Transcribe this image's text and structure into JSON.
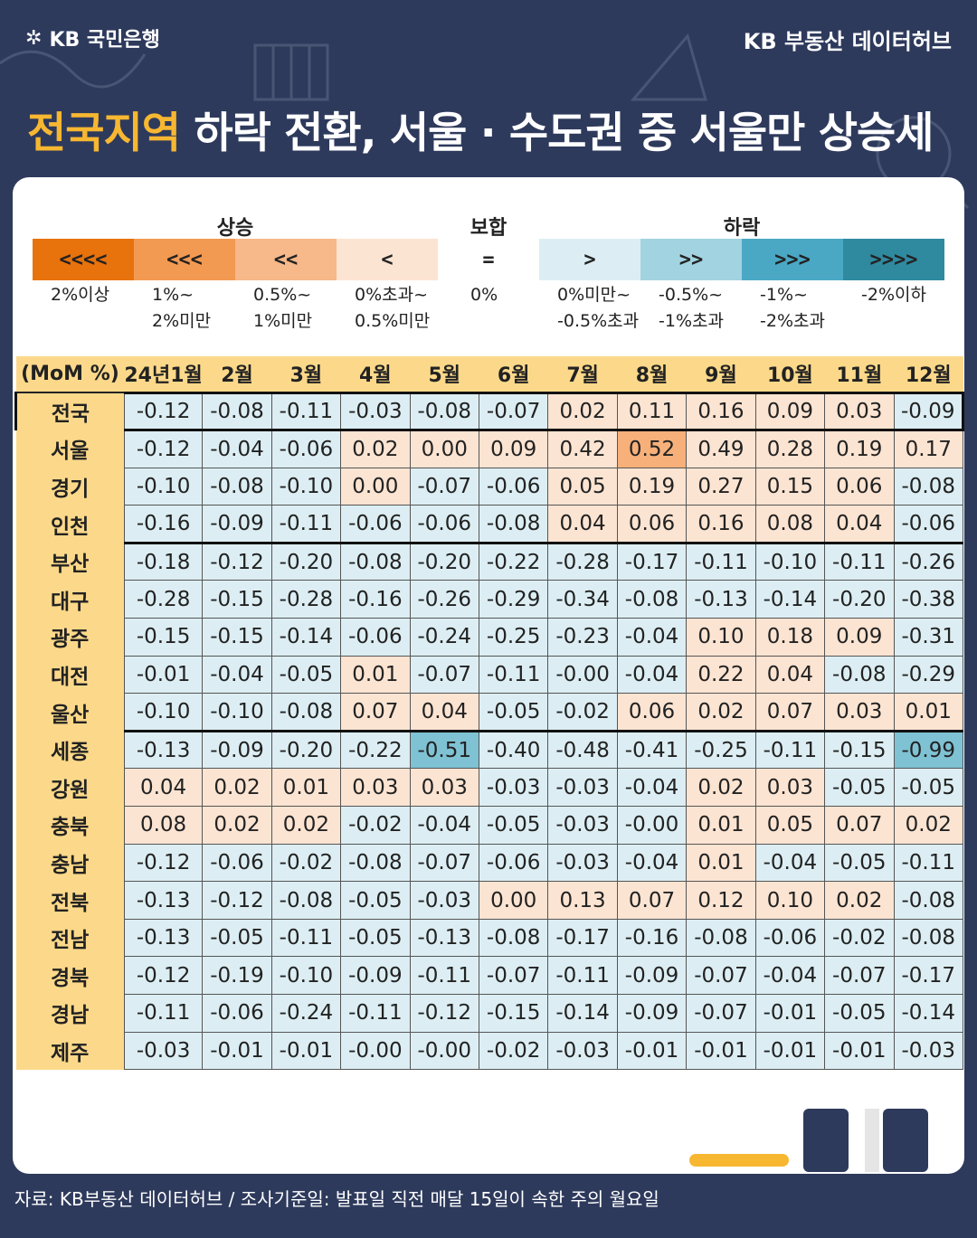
{
  "brand": {
    "left": "KB 국민은행",
    "right": "KB 부동산 데이터허브"
  },
  "headline": {
    "highlight": "전국지역",
    "rest": " 하락 전환, 서울 · 수도권 중 서울만 상승세"
  },
  "legend": {
    "groups": {
      "up": "상승",
      "flat": "보합",
      "down": "하락"
    },
    "swatches": [
      {
        "symbol": "<<<<",
        "color": "#e8720c",
        "label": "2%이상"
      },
      {
        "symbol": "<<<",
        "color": "#f39a52",
        "label": "1%~\n2%미만"
      },
      {
        "symbol": "<<",
        "color": "#f7b88a",
        "label": "0.5%~\n1%미만"
      },
      {
        "symbol": "<",
        "color": "#fce4d2",
        "label": "0%초과~\n0.5%미만"
      },
      {
        "symbol": "=",
        "color": "#ffffff",
        "label": "0%"
      },
      {
        "symbol": ">",
        "color": "#dceef3",
        "label": "0%미만~\n-0.5%초과"
      },
      {
        "symbol": ">>",
        "color": "#a2d3e1",
        "label": "-0.5%~\n-1%초과"
      },
      {
        "symbol": ">>>",
        "color": "#4aa8c4",
        "label": "-1%~\n-2%초과"
      },
      {
        "symbol": ">>>>",
        "color": "#2f8aa0",
        "label": "-2%이하"
      }
    ]
  },
  "table": {
    "header": [
      "(MoM %)",
      "24년1월",
      "2월",
      "3월",
      "4월",
      "5월",
      "6월",
      "7월",
      "8월",
      "9월",
      "10월",
      "11월",
      "12월"
    ],
    "rows": [
      {
        "region": "전국",
        "values": [
          "-0.12",
          "-0.08",
          "-0.11",
          "-0.03",
          "-0.08",
          "-0.07",
          "0.02",
          "0.11",
          "0.16",
          "0.09",
          "0.03",
          "-0.09"
        ]
      },
      {
        "region": "서울",
        "values": [
          "-0.12",
          "-0.04",
          "-0.06",
          "0.02",
          "0.00",
          "0.09",
          "0.42",
          "0.52",
          "0.49",
          "0.28",
          "0.19",
          "0.17"
        ]
      },
      {
        "region": "경기",
        "values": [
          "-0.10",
          "-0.08",
          "-0.10",
          "0.00",
          "-0.07",
          "-0.06",
          "0.05",
          "0.19",
          "0.27",
          "0.15",
          "0.06",
          "-0.08"
        ]
      },
      {
        "region": "인천",
        "values": [
          "-0.16",
          "-0.09",
          "-0.11",
          "-0.06",
          "-0.06",
          "-0.08",
          "0.04",
          "0.06",
          "0.16",
          "0.08",
          "0.04",
          "-0.06"
        ]
      },
      {
        "region": "부산",
        "values": [
          "-0.18",
          "-0.12",
          "-0.20",
          "-0.08",
          "-0.20",
          "-0.22",
          "-0.28",
          "-0.17",
          "-0.11",
          "-0.10",
          "-0.11",
          "-0.26"
        ]
      },
      {
        "region": "대구",
        "values": [
          "-0.28",
          "-0.15",
          "-0.28",
          "-0.16",
          "-0.26",
          "-0.29",
          "-0.34",
          "-0.08",
          "-0.13",
          "-0.14",
          "-0.20",
          "-0.38"
        ]
      },
      {
        "region": "광주",
        "values": [
          "-0.15",
          "-0.15",
          "-0.14",
          "-0.06",
          "-0.24",
          "-0.25",
          "-0.23",
          "-0.04",
          "0.10",
          "0.18",
          "0.09",
          "-0.31"
        ]
      },
      {
        "region": "대전",
        "values": [
          "-0.01",
          "-0.04",
          "-0.05",
          "0.01",
          "-0.07",
          "-0.11",
          "-0.00",
          "-0.04",
          "0.22",
          "0.04",
          "-0.08",
          "-0.29"
        ]
      },
      {
        "region": "울산",
        "values": [
          "-0.10",
          "-0.10",
          "-0.08",
          "0.07",
          "0.04",
          "-0.05",
          "-0.02",
          "0.06",
          "0.02",
          "0.07",
          "0.03",
          "0.01"
        ]
      },
      {
        "region": "세종",
        "values": [
          "-0.13",
          "-0.09",
          "-0.20",
          "-0.22",
          "-0.51",
          "-0.40",
          "-0.48",
          "-0.41",
          "-0.25",
          "-0.11",
          "-0.15",
          "-0.99"
        ]
      },
      {
        "region": "강원",
        "values": [
          "0.04",
          "0.02",
          "0.01",
          "0.03",
          "0.03",
          "-0.03",
          "-0.03",
          "-0.04",
          "0.02",
          "0.03",
          "-0.05",
          "-0.05"
        ]
      },
      {
        "region": "충북",
        "values": [
          "0.08",
          "0.02",
          "0.02",
          "-0.02",
          "-0.04",
          "-0.05",
          "-0.03",
          "-0.00",
          "0.01",
          "0.05",
          "0.07",
          "0.02"
        ]
      },
      {
        "region": "충남",
        "values": [
          "-0.12",
          "-0.06",
          "-0.02",
          "-0.08",
          "-0.07",
          "-0.06",
          "-0.03",
          "-0.04",
          "0.01",
          "-0.04",
          "-0.05",
          "-0.11"
        ]
      },
      {
        "region": "전북",
        "values": [
          "-0.13",
          "-0.12",
          "-0.08",
          "-0.05",
          "-0.03",
          "0.00",
          "0.13",
          "0.07",
          "0.12",
          "0.10",
          "0.02",
          "-0.08"
        ]
      },
      {
        "region": "전남",
        "values": [
          "-0.13",
          "-0.05",
          "-0.11",
          "-0.05",
          "-0.13",
          "-0.08",
          "-0.17",
          "-0.16",
          "-0.08",
          "-0.06",
          "-0.02",
          "-0.08"
        ]
      },
      {
        "region": "경북",
        "values": [
          "-0.12",
          "-0.19",
          "-0.10",
          "-0.09",
          "-0.11",
          "-0.07",
          "-0.11",
          "-0.09",
          "-0.07",
          "-0.04",
          "-0.07",
          "-0.17"
        ]
      },
      {
        "region": "경남",
        "values": [
          "-0.11",
          "-0.06",
          "-0.24",
          "-0.11",
          "-0.12",
          "-0.15",
          "-0.14",
          "-0.09",
          "-0.07",
          "-0.01",
          "-0.05",
          "-0.14"
        ]
      },
      {
        "region": "제주",
        "values": [
          "-0.03",
          "-0.01",
          "-0.01",
          "-0.00",
          "-0.00",
          "-0.02",
          "-0.03",
          "-0.01",
          "-0.01",
          "-0.01",
          "-0.01",
          "-0.03"
        ]
      }
    ],
    "cell_colors": {
      "positive_low": "#fce4d2",
      "positive_mid": "#f7b07a",
      "negative_low": "#dceef3",
      "negative_mid": "#7fc2d4",
      "header_bg": "#fcd98a"
    }
  },
  "footer": "자료: KB부동산 데이터허브 / 조사기준일: 발표일 직전 매달 15일이 속한 주의 월요일"
}
